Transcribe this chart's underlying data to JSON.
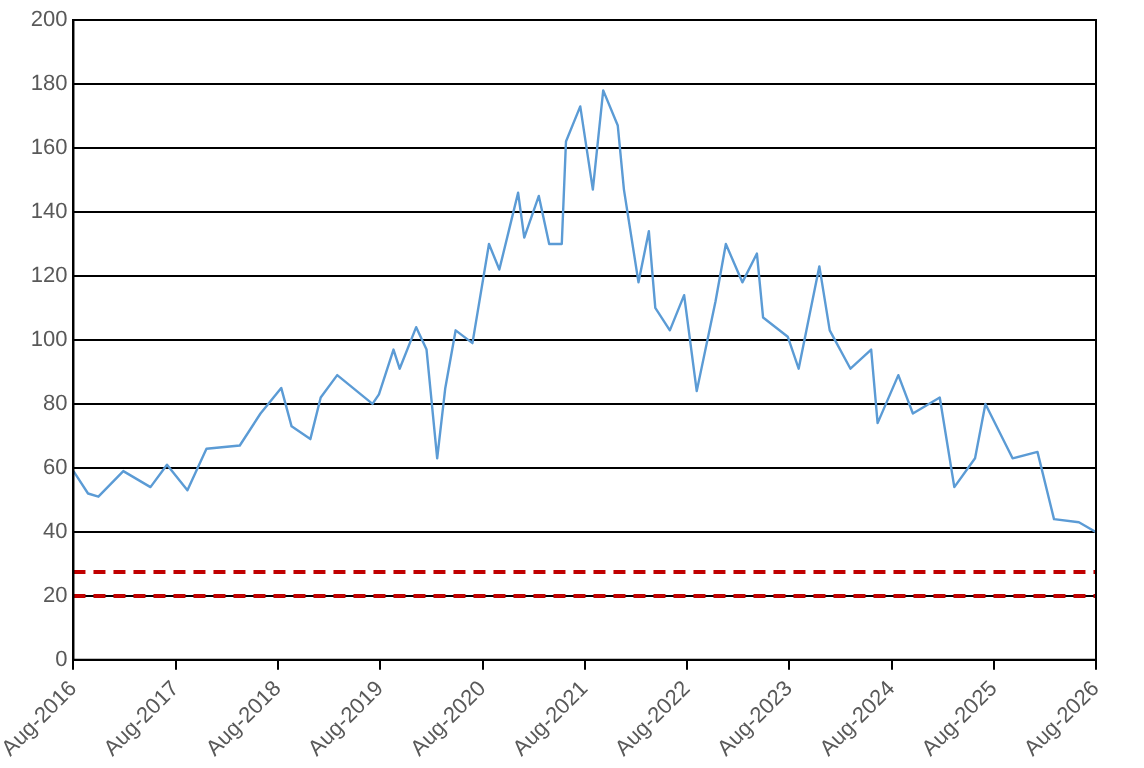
{
  "chart_data": {
    "type": "line",
    "series": [
      {
        "color": "#5b9bd5",
        "x": [
          "2016-08-01",
          "2016-09-22",
          "2016-10-29",
          "2017-01-26",
          "2017-05-03",
          "2017-07-01",
          "2017-09-12",
          "2017-11-19",
          "2018-03-18",
          "2018-05-31",
          "2018-08-13",
          "2018-09-19",
          "2018-11-25",
          "2019-01-01",
          "2019-03-01",
          "2019-07-05",
          "2019-07-28",
          "2019-09-18",
          "2019-10-10",
          "2019-12-08",
          "2020-01-14",
          "2020-02-21",
          "2020-03-21",
          "2020-04-27",
          "2020-06-26",
          "2020-08-24",
          "2020-09-30",
          "2020-12-06",
          "2020-12-28",
          "2021-02-18",
          "2021-03-27",
          "2021-05-11",
          "2021-05-26",
          "2021-07-16",
          "2021-08-30",
          "2021-10-06",
          "2021-11-27",
          "2021-12-19",
          "2022-02-09",
          "2022-03-18",
          "2022-04-10",
          "2022-06-01",
          "2022-07-22",
          "2022-09-05",
          "2022-11-11",
          "2022-12-18",
          "2023-02-15",
          "2023-04-08",
          "2023-04-30",
          "2023-07-27",
          "2023-09-04",
          "2023-10-11",
          "2023-11-17",
          "2023-12-24",
          "2024-03-07",
          "2024-05-20",
          "2024-06-12",
          "2024-08-25",
          "2024-10-16",
          "2025-01-20",
          "2025-03-13",
          "2025-05-26",
          "2025-07-02",
          "2025-10-07",
          "2026-01-04",
          "2026-03-04",
          "2026-06-01",
          "2026-07-31"
        ],
        "values": [
          59,
          52,
          51,
          59,
          54,
          61,
          53,
          66,
          67,
          77,
          85,
          73,
          69,
          82,
          89,
          80,
          83,
          97,
          91,
          104,
          97,
          63,
          85,
          103,
          99,
          130,
          122,
          146,
          132,
          145,
          130,
          130,
          162,
          173,
          147,
          178,
          167,
          147,
          118,
          134,
          110,
          103,
          114,
          84,
          112,
          130,
          118,
          127,
          107,
          101,
          91,
          107,
          123,
          103,
          91,
          97,
          74,
          89,
          77,
          82,
          54,
          63,
          80,
          63,
          65,
          44,
          43,
          40
        ]
      }
    ],
    "xlim": [
      "2016-08-01",
      "2026-08-01"
    ],
    "xticks": [
      {
        "value": "2016-08-01",
        "label": "Aug-2016"
      },
      {
        "value": "2017-08-01",
        "label": "Aug-2017"
      },
      {
        "value": "2018-08-01",
        "label": "Aug-2018"
      },
      {
        "value": "2019-08-01",
        "label": "Aug-2019"
      },
      {
        "value": "2020-08-01",
        "label": "Aug-2020"
      },
      {
        "value": "2021-08-01",
        "label": "Aug-2021"
      },
      {
        "value": "2022-08-01",
        "label": "Aug-2022"
      },
      {
        "value": "2023-08-01",
        "label": "Aug-2023"
      },
      {
        "value": "2024-08-01",
        "label": "Aug-2024"
      },
      {
        "value": "2025-08-01",
        "label": "Aug-2025"
      },
      {
        "value": "2026-08-01",
        "label": "Aug-2026"
      }
    ],
    "ylim": [
      0,
      200
    ],
    "yticks": [
      0,
      20,
      40,
      60,
      80,
      100,
      120,
      140,
      160,
      180,
      200
    ],
    "grid": "y",
    "legend": false,
    "marker": "none",
    "line_style": "solid",
    "ref_lines": [
      {
        "axis": "y",
        "value": 27.5,
        "color": "#c00000",
        "line_style": "dashed"
      },
      {
        "axis": "y",
        "value": 20,
        "color": "#c00000",
        "line_style": "dashed"
      }
    ]
  }
}
